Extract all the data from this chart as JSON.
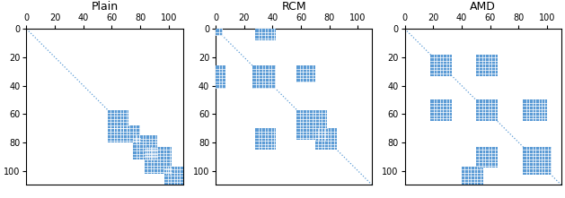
{
  "titles": [
    "Plain",
    "RCM",
    "AMD"
  ],
  "n": 110,
  "tick_vals": [
    0,
    20,
    40,
    60,
    80,
    100
  ],
  "dot_color": "#5b9bd5",
  "block_color": "#5b9bd5",
  "bg_color": "#ffffff",
  "plain_blocks": [
    {
      "r0": 57,
      "c0": 57,
      "r1": 73,
      "c1": 73
    },
    {
      "r0": 68,
      "c0": 57,
      "r1": 82,
      "c1": 80
    },
    {
      "r0": 75,
      "c0": 75,
      "r1": 92,
      "c1": 92
    },
    {
      "r0": 82,
      "c0": 82,
      "r1": 103,
      "c1": 103
    },
    {
      "r0": 95,
      "c0": 95,
      "r1": 110,
      "c1": 110
    }
  ],
  "rcm_blocks": [
    {
      "r0": 0,
      "c0": 0,
      "r1": 6,
      "c1": 6
    },
    {
      "r0": 0,
      "c0": 28,
      "r1": 8,
      "c1": 42
    },
    {
      "r0": 25,
      "c0": 0,
      "r1": 42,
      "c1": 8
    },
    {
      "r0": 25,
      "c0": 25,
      "r1": 42,
      "c1": 42
    },
    {
      "r0": 25,
      "c0": 57,
      "r1": 38,
      "c1": 70
    },
    {
      "r0": 57,
      "c0": 57,
      "r1": 78,
      "c1": 78
    },
    {
      "r0": 70,
      "c0": 28,
      "r1": 85,
      "c1": 42
    },
    {
      "r0": 70,
      "c0": 70,
      "r1": 85,
      "c1": 85
    }
  ],
  "amd_blocks": [
    {
      "r0": 18,
      "c0": 18,
      "r1": 33,
      "c1": 33
    },
    {
      "r0": 18,
      "c0": 50,
      "r1": 33,
      "c1": 65
    },
    {
      "r0": 50,
      "c0": 18,
      "r1": 65,
      "c1": 33
    },
    {
      "r0": 50,
      "c0": 50,
      "r1": 65,
      "c1": 65
    },
    {
      "r0": 50,
      "c0": 83,
      "r1": 65,
      "c1": 100
    },
    {
      "r0": 85,
      "c0": 50,
      "r1": 100,
      "c1": 65
    },
    {
      "r0": 85,
      "c0": 85,
      "r1": 103,
      "c1": 103
    },
    {
      "r0": 95,
      "c0": 40,
      "r1": 110,
      "c1": 55
    }
  ],
  "figsize": [
    6.29,
    2.21
  ],
  "dpi": 100
}
